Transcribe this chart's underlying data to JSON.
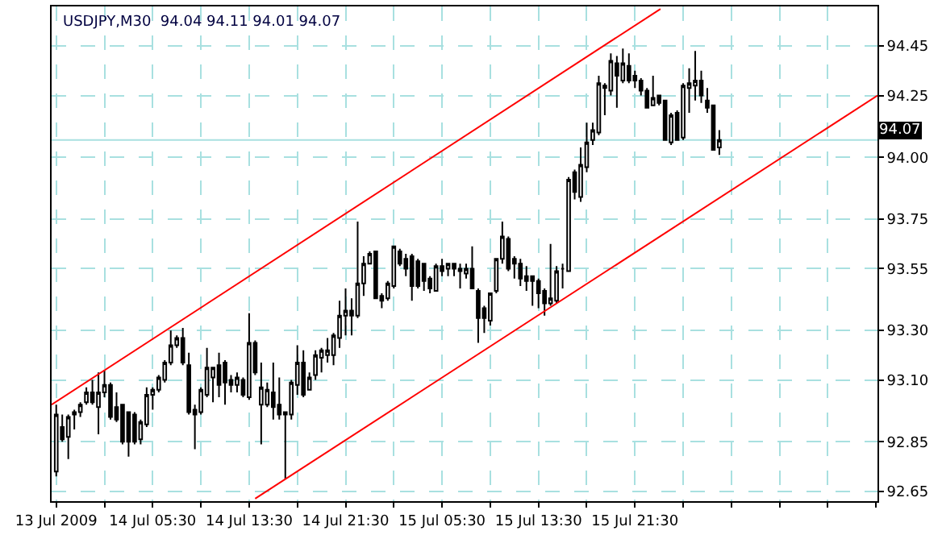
{
  "chart_data": {
    "type": "candlestick",
    "title": "USDJPY,M30  94.04 94.11 94.01 94.07",
    "x": [
      "2009-07-13T21:30",
      "2009-07-13T22:00",
      "2009-07-13T22:30",
      "2009-07-13T23:00",
      "2009-07-13T23:30",
      "2009-07-14T00:00",
      "2009-07-14T00:30",
      "2009-07-14T01:00",
      "2009-07-14T01:30",
      "2009-07-14T02:00",
      "2009-07-14T02:30",
      "2009-07-14T03:00",
      "2009-07-14T03:30",
      "2009-07-14T04:00",
      "2009-07-14T04:30",
      "2009-07-14T05:00",
      "2009-07-14T05:30",
      "2009-07-14T06:00",
      "2009-07-14T06:30",
      "2009-07-14T07:00",
      "2009-07-14T07:30",
      "2009-07-14T08:00",
      "2009-07-14T08:30",
      "2009-07-14T09:00",
      "2009-07-14T09:30",
      "2009-07-14T10:00",
      "2009-07-14T10:30",
      "2009-07-14T11:00",
      "2009-07-14T11:30",
      "2009-07-14T12:00",
      "2009-07-14T12:30",
      "2009-07-14T13:00",
      "2009-07-14T13:30",
      "2009-07-14T14:00",
      "2009-07-14T14:30",
      "2009-07-14T15:00",
      "2009-07-14T15:30",
      "2009-07-14T16:00",
      "2009-07-14T16:30",
      "2009-07-14T17:00",
      "2009-07-14T17:30",
      "2009-07-14T18:00",
      "2009-07-14T18:30",
      "2009-07-14T19:00",
      "2009-07-14T19:30",
      "2009-07-14T20:00",
      "2009-07-14T20:30",
      "2009-07-14T21:00",
      "2009-07-14T21:30",
      "2009-07-14T22:00",
      "2009-07-14T22:30",
      "2009-07-14T23:00",
      "2009-07-14T23:30",
      "2009-07-15T00:00",
      "2009-07-15T00:30",
      "2009-07-15T01:00",
      "2009-07-15T01:30",
      "2009-07-15T02:00",
      "2009-07-15T02:30",
      "2009-07-15T03:00",
      "2009-07-15T03:30",
      "2009-07-15T04:00",
      "2009-07-15T04:30",
      "2009-07-15T05:00",
      "2009-07-15T05:30",
      "2009-07-15T06:00",
      "2009-07-15T06:30",
      "2009-07-15T07:00",
      "2009-07-15T07:30",
      "2009-07-15T08:00",
      "2009-07-15T08:30",
      "2009-07-15T09:00",
      "2009-07-15T09:30",
      "2009-07-15T10:00",
      "2009-07-15T10:30",
      "2009-07-15T11:00",
      "2009-07-15T11:30",
      "2009-07-15T12:00",
      "2009-07-15T12:30",
      "2009-07-15T13:00",
      "2009-07-15T13:30",
      "2009-07-15T14:00",
      "2009-07-15T14:30",
      "2009-07-15T15:00",
      "2009-07-15T15:30",
      "2009-07-15T16:00",
      "2009-07-15T16:30",
      "2009-07-15T17:00",
      "2009-07-15T17:30",
      "2009-07-15T18:00",
      "2009-07-15T18:30",
      "2009-07-15T19:00",
      "2009-07-15T19:30",
      "2009-07-15T20:00",
      "2009-07-15T20:30",
      "2009-07-15T21:00",
      "2009-07-15T21:30",
      "2009-07-15T22:00",
      "2009-07-15T22:30",
      "2009-07-15T23:00",
      "2009-07-15T23:30",
      "2009-07-16T00:00",
      "2009-07-16T00:30",
      "2009-07-16T01:00",
      "2009-07-16T01:30",
      "2009-07-16T02:00",
      "2009-07-16T02:30",
      "2009-07-16T03:00",
      "2009-07-16T03:30",
      "2009-07-16T04:00",
      "2009-07-16T04:30"
    ],
    "ohlc": [
      [
        92.73,
        93.0,
        92.71,
        92.96
      ],
      [
        92.91,
        92.96,
        92.85,
        92.86
      ],
      [
        92.87,
        92.96,
        92.78,
        92.95
      ],
      [
        92.96,
        92.98,
        92.9,
        92.97
      ],
      [
        92.97,
        93.01,
        92.95,
        93.0
      ],
      [
        93.01,
        93.07,
        93.0,
        93.05
      ],
      [
        93.05,
        93.1,
        93.0,
        93.01
      ],
      [
        92.99,
        93.13,
        92.88,
        93.05
      ],
      [
        93.05,
        93.14,
        93.03,
        93.08
      ],
      [
        93.08,
        93.09,
        92.94,
        92.95
      ],
      [
        92.99,
        93.05,
        92.93,
        92.94
      ],
      [
        93.0,
        93.0,
        92.84,
        92.85
      ],
      [
        92.97,
        92.97,
        92.79,
        92.85
      ],
      [
        92.96,
        92.97,
        92.84,
        92.85
      ],
      [
        92.86,
        92.94,
        92.84,
        92.93
      ],
      [
        92.92,
        93.07,
        92.91,
        93.04
      ],
      [
        93.04,
        93.07,
        92.98,
        93.06
      ],
      [
        93.06,
        93.12,
        93.05,
        93.11
      ],
      [
        93.1,
        93.18,
        93.09,
        93.17
      ],
      [
        93.17,
        93.3,
        93.16,
        93.24
      ],
      [
        93.24,
        93.28,
        93.23,
        93.27
      ],
      [
        93.27,
        93.31,
        93.16,
        93.17
      ],
      [
        93.16,
        93.21,
        92.96,
        92.97
      ],
      [
        92.98,
        93.0,
        92.82,
        92.96
      ],
      [
        92.97,
        93.07,
        92.96,
        93.06
      ],
      [
        93.04,
        93.23,
        93.03,
        93.15
      ],
      [
        93.11,
        93.15,
        93.01,
        93.15
      ],
      [
        93.16,
        93.21,
        93.03,
        93.08
      ],
      [
        93.17,
        93.18,
        93.0,
        93.09
      ],
      [
        93.1,
        93.12,
        93.05,
        93.08
      ],
      [
        93.08,
        93.13,
        93.05,
        93.11
      ],
      [
        93.1,
        93.11,
        93.03,
        93.04
      ],
      [
        93.03,
        93.37,
        93.02,
        93.25
      ],
      [
        93.25,
        93.26,
        93.12,
        93.13
      ],
      [
        93.0,
        93.17,
        92.84,
        93.07
      ],
      [
        93.0,
        93.09,
        92.99,
        93.06
      ],
      [
        93.05,
        93.17,
        92.94,
        92.99
      ],
      [
        93.0,
        93.11,
        92.94,
        92.96
      ],
      [
        92.96,
        92.97,
        92.7,
        92.97
      ],
      [
        92.96,
        93.1,
        92.94,
        93.09
      ],
      [
        93.08,
        93.24,
        93.04,
        93.17
      ],
      [
        93.17,
        93.22,
        93.03,
        93.04
      ],
      [
        93.06,
        93.13,
        93.06,
        93.11
      ],
      [
        93.12,
        93.22,
        93.1,
        93.2
      ],
      [
        93.19,
        93.23,
        93.13,
        93.22
      ],
      [
        93.2,
        93.27,
        93.17,
        93.22
      ],
      [
        93.2,
        93.29,
        93.16,
        93.28
      ],
      [
        93.27,
        93.42,
        93.23,
        93.36
      ],
      [
        93.36,
        93.47,
        93.28,
        93.38
      ],
      [
        93.38,
        93.43,
        93.28,
        93.36
      ],
      [
        93.36,
        93.74,
        93.35,
        93.49
      ],
      [
        93.49,
        93.6,
        93.44,
        93.57
      ],
      [
        93.57,
        93.62,
        93.57,
        93.61
      ],
      [
        93.62,
        93.62,
        93.43,
        93.43
      ],
      [
        93.44,
        93.45,
        93.39,
        93.42
      ],
      [
        93.43,
        93.5,
        93.42,
        93.49
      ],
      [
        93.48,
        93.64,
        93.47,
        93.64
      ],
      [
        93.62,
        93.63,
        93.56,
        93.57
      ],
      [
        93.59,
        93.61,
        93.52,
        93.55
      ],
      [
        93.6,
        93.61,
        93.42,
        93.48
      ],
      [
        93.58,
        93.59,
        93.47,
        93.48
      ],
      [
        93.57,
        93.57,
        93.46,
        93.5
      ],
      [
        93.51,
        93.52,
        93.45,
        93.47
      ],
      [
        93.46,
        93.57,
        93.46,
        93.56
      ],
      [
        93.56,
        93.59,
        93.52,
        93.54
      ],
      [
        93.55,
        93.57,
        93.52,
        93.57
      ],
      [
        93.57,
        93.57,
        93.52,
        93.55
      ],
      [
        93.55,
        93.57,
        93.47,
        93.54
      ],
      [
        93.53,
        93.57,
        93.51,
        93.55
      ],
      [
        93.55,
        93.64,
        93.47,
        93.47
      ],
      [
        93.46,
        93.47,
        93.25,
        93.35
      ],
      [
        93.39,
        93.4,
        93.29,
        93.35
      ],
      [
        93.34,
        93.45,
        93.32,
        93.45
      ],
      [
        93.46,
        93.59,
        93.45,
        93.59
      ],
      [
        93.59,
        93.74,
        93.57,
        93.68
      ],
      [
        93.67,
        93.68,
        93.54,
        93.55
      ],
      [
        93.59,
        93.6,
        93.51,
        93.57
      ],
      [
        93.57,
        93.59,
        93.48,
        93.51
      ],
      [
        93.52,
        93.56,
        93.46,
        93.5
      ],
      [
        93.52,
        93.52,
        93.4,
        93.5
      ],
      [
        93.5,
        93.51,
        93.39,
        93.45
      ],
      [
        93.46,
        93.47,
        93.36,
        93.41
      ],
      [
        93.41,
        93.65,
        93.4,
        93.43
      ],
      [
        93.42,
        93.56,
        93.41,
        93.54
      ],
      [
        93.55,
        93.57,
        93.47,
        93.55
      ],
      [
        93.54,
        93.92,
        93.54,
        93.91
      ],
      [
        93.94,
        93.95,
        93.83,
        93.86
      ],
      [
        93.84,
        94.04,
        93.82,
        93.97
      ],
      [
        93.96,
        94.14,
        93.94,
        94.06
      ],
      [
        94.07,
        94.14,
        94.05,
        94.11
      ],
      [
        94.1,
        94.33,
        94.09,
        94.3
      ],
      [
        94.29,
        94.3,
        94.17,
        94.28
      ],
      [
        94.27,
        94.42,
        94.25,
        94.39
      ],
      [
        94.38,
        94.41,
        94.2,
        94.33
      ],
      [
        94.31,
        94.44,
        94.3,
        94.38
      ],
      [
        94.37,
        94.42,
        94.3,
        94.31
      ],
      [
        94.33,
        94.35,
        94.28,
        94.31
      ],
      [
        94.31,
        94.32,
        94.25,
        94.27
      ],
      [
        94.27,
        94.28,
        94.2,
        94.2
      ],
      [
        94.21,
        94.33,
        94.21,
        94.24
      ],
      [
        94.25,
        94.25,
        94.21,
        94.22
      ],
      [
        94.23,
        94.23,
        94.07,
        94.07
      ],
      [
        94.06,
        94.18,
        94.05,
        94.17
      ],
      [
        94.18,
        94.19,
        94.07,
        94.07
      ],
      [
        94.08,
        94.3,
        94.07,
        94.29
      ],
      [
        94.28,
        94.36,
        94.18,
        94.3
      ],
      [
        94.29,
        94.43,
        94.23,
        94.31
      ],
      [
        94.31,
        94.35,
        94.22,
        94.25
      ],
      [
        94.23,
        94.28,
        94.18,
        94.2
      ],
      [
        94.21,
        94.21,
        94.03,
        94.03
      ],
      [
        94.04,
        94.11,
        94.01,
        94.07
      ]
    ],
    "series": [
      {
        "type": "line",
        "color": "#ff0000",
        "x": [
          "2009-07-13T21:07",
          "2009-07-15T23:37"
        ],
        "values": [
          93.0,
          94.6
        ]
      },
      {
        "type": "line",
        "color": "#ff0000",
        "x": [
          "2009-07-14T14:00",
          "2009-07-16T17:37"
        ],
        "values": [
          92.62,
          94.25
        ]
      }
    ],
    "ref_lines": [
      {
        "axis": "y",
        "value": 94.07,
        "label": "94.07",
        "color": "#a8e0e0"
      }
    ],
    "xlim": [
      "2009-07-13T21:07",
      "2009-07-16T17:37"
    ],
    "xticks": [
      {
        "value": "2009-07-13T21:30",
        "label": "13 Jul 2009"
      },
      {
        "value": "2009-07-14T01:30",
        "label": null
      },
      {
        "value": "2009-07-14T05:30",
        "label": "14 Jul 05:30"
      },
      {
        "value": "2009-07-14T09:30",
        "label": null
      },
      {
        "value": "2009-07-14T13:30",
        "label": "14 Jul 13:30"
      },
      {
        "value": "2009-07-14T17:30",
        "label": null
      },
      {
        "value": "2009-07-14T21:30",
        "label": "14 Jul 21:30"
      },
      {
        "value": "2009-07-15T01:30",
        "label": null
      },
      {
        "value": "2009-07-15T05:30",
        "label": "15 Jul 05:30"
      },
      {
        "value": "2009-07-15T09:30",
        "label": null
      },
      {
        "value": "2009-07-15T13:30",
        "label": "15 Jul 13:30"
      },
      {
        "value": "2009-07-15T17:30",
        "label": null
      },
      {
        "value": "2009-07-15T21:30",
        "label": "15 Jul 21:30"
      },
      {
        "value": "2009-07-16T01:30",
        "label": null
      },
      {
        "value": "2009-07-16T05:30",
        "label": null
      },
      {
        "value": "2009-07-16T09:30",
        "label": null
      },
      {
        "value": "2009-07-16T13:30",
        "label": null
      },
      {
        "value": "2009-07-16T17:30",
        "label": null
      }
    ],
    "ylim": [
      92.61,
      94.61
    ],
    "yticks": [
      {
        "value": 92.65,
        "label": "92.65"
      },
      {
        "value": 92.85,
        "label": "92.85"
      },
      {
        "value": 93.1,
        "label": "93.10"
      },
      {
        "value": 93.3,
        "label": "93.30"
      },
      {
        "value": 93.55,
        "label": "93.55"
      },
      {
        "value": 93.75,
        "label": "93.75"
      },
      {
        "value": 94.0,
        "label": "94.00"
      },
      {
        "value": 94.25,
        "label": "94.25"
      },
      {
        "value": 94.45,
        "label": "94.45"
      }
    ],
    "grid": true
  }
}
